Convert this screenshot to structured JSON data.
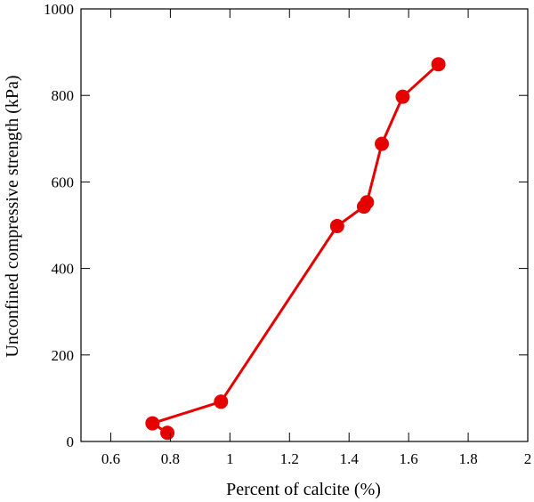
{
  "chart_data": {
    "type": "line",
    "title": "",
    "xlabel": "Percent of calcite (%)",
    "ylabel": "Unconfined compressive strength (kPa)",
    "xlim": [
      0.5,
      2.0
    ],
    "ylim": [
      0,
      1000
    ],
    "xticks": [
      0.6,
      0.8,
      1.0,
      1.2,
      1.4,
      1.6,
      1.8,
      2.0
    ],
    "xtick_labels": [
      "0.6",
      "0.8",
      "1",
      "1.2",
      "1.4",
      "1.6",
      "1.8",
      "2"
    ],
    "yticks": [
      0,
      200,
      400,
      600,
      800,
      1000
    ],
    "ytick_labels": [
      "0",
      "200",
      "400",
      "600",
      "800",
      "1000"
    ],
    "grid": false,
    "series": [
      {
        "color": "#e60000",
        "marker": "circle",
        "x": [
          0.79,
          0.74,
          0.97,
          1.36,
          1.45,
          1.46,
          1.51,
          1.58,
          1.7
        ],
        "y": [
          20,
          42,
          92,
          498,
          543,
          553,
          688,
          797,
          872
        ]
      }
    ]
  }
}
